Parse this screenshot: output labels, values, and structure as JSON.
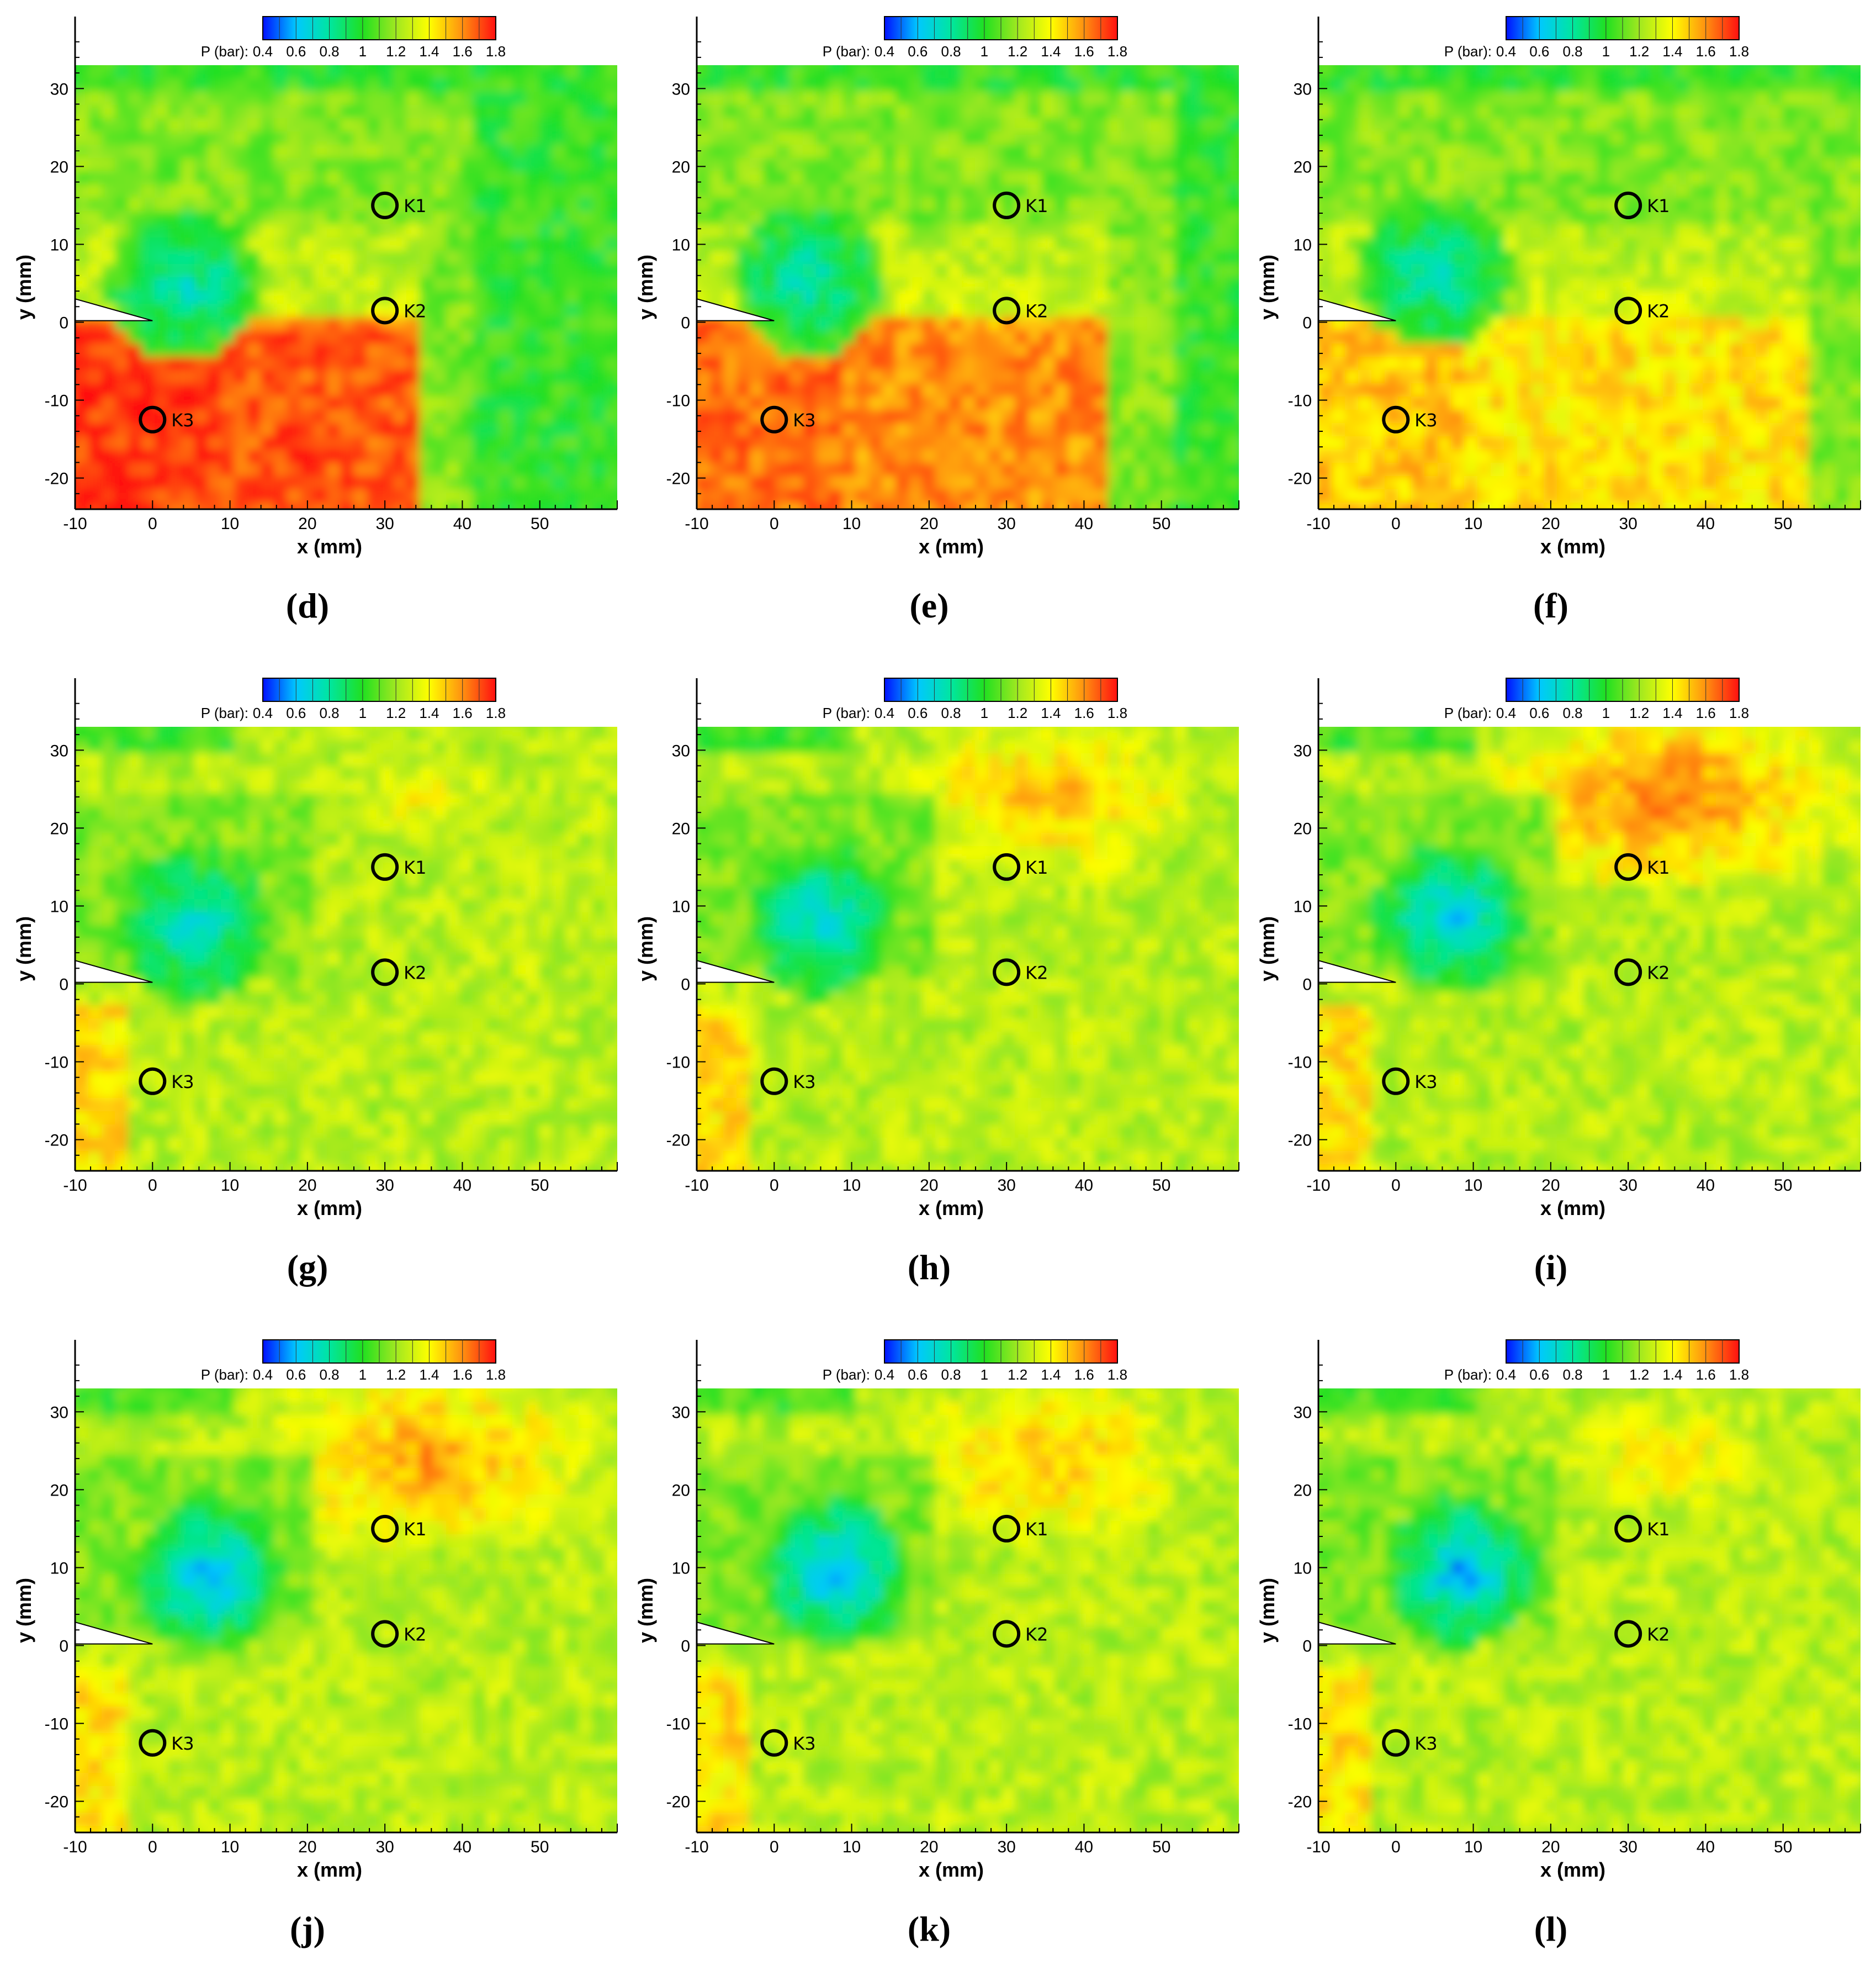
{
  "chart_data": {
    "type": "heatmap",
    "colorbar": {
      "label": "P (bar):",
      "ticks": [
        "0.4",
        "0.6",
        "0.8",
        "1",
        "1.2",
        "1.4",
        "1.6",
        "1.8"
      ],
      "range": [
        0.4,
        1.8
      ],
      "colors": [
        "#0010ff",
        "#00c8ff",
        "#00e6a0",
        "#20e020",
        "#a0e820",
        "#ffff00",
        "#ff9010",
        "#ff1010"
      ]
    },
    "xlabel": "x (mm)",
    "ylabel": "y (mm)",
    "xlim": [
      -10,
      60
    ],
    "ylim": [
      -24,
      33
    ],
    "xticks": [
      "-10",
      "0",
      "10",
      "20",
      "30",
      "40",
      "50"
    ],
    "yticks": [
      "30",
      "20",
      "10",
      "0",
      "-10",
      "-20"
    ],
    "probes": [
      {
        "name": "K1",
        "x": 30,
        "y": 15
      },
      {
        "name": "K2",
        "x": 30,
        "y": 1.5
      },
      {
        "name": "K3",
        "x": 0,
        "y": -12.5
      }
    ],
    "panels": [
      {
        "label": "(d)",
        "vortex": {
          "x": 4,
          "y": 5,
          "p": 0.75
        },
        "front_x": 36,
        "high_region": "lower",
        "high_level": 1.7
      },
      {
        "label": "(e)",
        "vortex": {
          "x": 4.5,
          "y": 5.5,
          "p": 0.75
        },
        "front_x": 45,
        "high_region": "lower",
        "high_level": 1.6
      },
      {
        "label": "(f)",
        "vortex": {
          "x": 5,
          "y": 6.5,
          "p": 0.75
        },
        "front_x": 55,
        "high_region": "lower",
        "high_level": 1.45
      },
      {
        "label": "(g)",
        "vortex": {
          "x": 5.5,
          "y": 7.5,
          "p": 0.7
        },
        "front_x": 60,
        "high_region": "upper",
        "high_level": 1.4
      },
      {
        "label": "(h)",
        "vortex": {
          "x": 6,
          "y": 8,
          "p": 0.65
        },
        "front_x": 60,
        "high_region": "upper",
        "high_level": 1.55
      },
      {
        "label": "(i)",
        "vortex": {
          "x": 7,
          "y": 8.5,
          "p": 0.6
        },
        "front_x": 60,
        "high_region": "upper",
        "high_level": 1.65
      },
      {
        "label": "(j)",
        "vortex": {
          "x": 7.5,
          "y": 9,
          "p": 0.55
        },
        "front_x": 60,
        "high_region": "upper",
        "high_level": 1.6
      },
      {
        "label": "(k)",
        "vortex": {
          "x": 8,
          "y": 9.5,
          "p": 0.55
        },
        "front_x": 60,
        "high_region": "upper",
        "high_level": 1.55
      },
      {
        "label": "(l)",
        "vortex": {
          "x": 8.5,
          "y": 9.5,
          "p": 0.55
        },
        "front_x": 60,
        "high_region": "upper",
        "high_level": 1.45
      }
    ]
  }
}
